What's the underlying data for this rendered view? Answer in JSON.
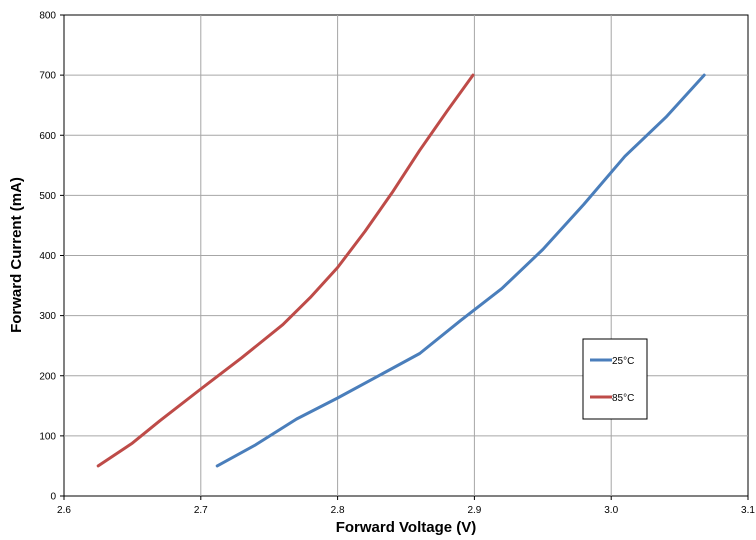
{
  "chart_data": {
    "type": "line",
    "title": "",
    "xlabel": "Forward Voltage (V)",
    "ylabel": "Forward Current (mA)",
    "xlim": [
      2.6,
      3.1
    ],
    "ylim": [
      0,
      800
    ],
    "x_ticks": [
      "2.6",
      "2.7",
      "2.8",
      "2.9",
      "3.0",
      "3.1"
    ],
    "y_ticks": [
      "0",
      "100",
      "200",
      "300",
      "400",
      "500",
      "600",
      "700",
      "800"
    ],
    "grid": true,
    "legend_position": "right",
    "series": [
      {
        "name": "25°C",
        "color": "#4a7ebb",
        "points": [
          [
            2.712,
            50
          ],
          [
            2.74,
            85
          ],
          [
            2.77,
            128
          ],
          [
            2.8,
            163
          ],
          [
            2.83,
            200
          ],
          [
            2.86,
            237
          ],
          [
            2.89,
            292
          ],
          [
            2.92,
            345
          ],
          [
            2.95,
            410
          ],
          [
            2.98,
            485
          ],
          [
            3.01,
            565
          ],
          [
            3.04,
            630
          ],
          [
            3.068,
            700
          ]
        ]
      },
      {
        "name": "85°C",
        "color": "#be4b48",
        "points": [
          [
            2.625,
            50
          ],
          [
            2.65,
            88
          ],
          [
            2.67,
            125
          ],
          [
            2.7,
            178
          ],
          [
            2.73,
            230
          ],
          [
            2.76,
            285
          ],
          [
            2.78,
            330
          ],
          [
            2.8,
            380
          ],
          [
            2.82,
            440
          ],
          [
            2.84,
            505
          ],
          [
            2.86,
            575
          ],
          [
            2.88,
            640
          ],
          [
            2.899,
            700
          ]
        ]
      }
    ]
  }
}
